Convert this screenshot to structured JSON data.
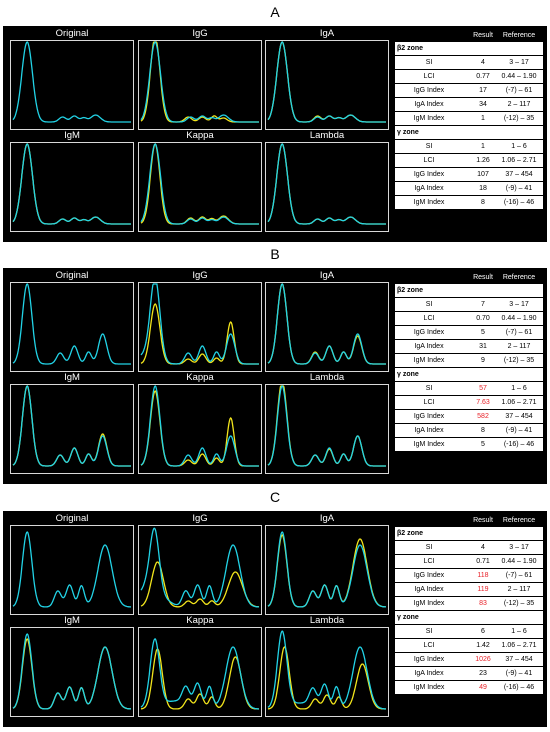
{
  "colors": {
    "original": "#22d3e6",
    "overlay": "#f2e51c",
    "flag": "#e8232a",
    "panel_bg": "#000000",
    "frame": "#d9d9d9"
  },
  "table_headers": {
    "result": "Result",
    "reference": "Reference"
  },
  "panels": [
    {
      "letter": "A",
      "profile": "A",
      "titles": [
        "Original",
        "IgG",
        "IgA",
        "IgM",
        "Kappa",
        "Lambda"
      ],
      "zones": [
        {
          "name": "β2 zone",
          "rows": [
            {
              "label": "SI",
              "result": "4",
              "reference": "3 – 17",
              "flag": false
            },
            {
              "label": "LCI",
              "result": "0.77",
              "reference": "0.44 – 1.90",
              "flag": false
            },
            {
              "label": "IgG Index",
              "result": "17",
              "reference": "(-7) – 61",
              "flag": false
            },
            {
              "label": "IgA Index",
              "result": "34",
              "reference": "2 – 117",
              "flag": false
            },
            {
              "label": "IgM Index",
              "result": "1",
              "reference": "(-12) – 35",
              "flag": false
            }
          ]
        },
        {
          "name": "γ zone",
          "rows": [
            {
              "label": "SI",
              "result": "1",
              "reference": "1 – 6",
              "flag": false
            },
            {
              "label": "LCI",
              "result": "1.26",
              "reference": "1.06 – 2.71",
              "flag": false
            },
            {
              "label": "IgG Index",
              "result": "107",
              "reference": "37 – 454",
              "flag": false
            },
            {
              "label": "IgA Index",
              "result": "18",
              "reference": "(-9) – 41",
              "flag": false
            },
            {
              "label": "IgM Index",
              "result": "8",
              "reference": "(-16) – 46",
              "flag": false
            }
          ]
        }
      ]
    },
    {
      "letter": "B",
      "profile": "B",
      "titles": [
        "Original",
        "IgG",
        "IgA",
        "IgM",
        "Kappa",
        "Lambda"
      ],
      "zones": [
        {
          "name": "β2 zone",
          "rows": [
            {
              "label": "SI",
              "result": "7",
              "reference": "3 – 17",
              "flag": false
            },
            {
              "label": "LCI",
              "result": "0.70",
              "reference": "0.44 – 1.90",
              "flag": false
            },
            {
              "label": "IgG Index",
              "result": "5",
              "reference": "(-7) – 61",
              "flag": false
            },
            {
              "label": "IgA Index",
              "result": "31",
              "reference": "2 – 117",
              "flag": false
            },
            {
              "label": "IgM Index",
              "result": "9",
              "reference": "(-12) – 35",
              "flag": false
            }
          ]
        },
        {
          "name": "γ zone",
          "rows": [
            {
              "label": "SI",
              "result": "57",
              "reference": "1 – 6",
              "flag": true
            },
            {
              "label": "LCI",
              "result": "7.63",
              "reference": "1.06 – 2.71",
              "flag": true
            },
            {
              "label": "IgG Index",
              "result": "582",
              "reference": "37 – 454",
              "flag": true
            },
            {
              "label": "IgA Index",
              "result": "8",
              "reference": "(-9) – 41",
              "flag": false
            },
            {
              "label": "IgM Index",
              "result": "5",
              "reference": "(-16) – 46",
              "flag": false
            }
          ]
        }
      ]
    },
    {
      "letter": "C",
      "profile": "C",
      "titles": [
        "Original",
        "IgG",
        "IgA",
        "IgM",
        "Kappa",
        "Lambda"
      ],
      "zones": [
        {
          "name": "β2 zone",
          "rows": [
            {
              "label": "SI",
              "result": "4",
              "reference": "3 – 17",
              "flag": false
            },
            {
              "label": "LCI",
              "result": "0.71",
              "reference": "0.44 – 1.90",
              "flag": false
            },
            {
              "label": "IgG Index",
              "result": "118",
              "reference": "(-7) – 61",
              "flag": true
            },
            {
              "label": "IgA Index",
              "result": "119",
              "reference": "2 – 117",
              "flag": true
            },
            {
              "label": "IgM Index",
              "result": "83",
              "reference": "(-12) – 35",
              "flag": true
            }
          ]
        },
        {
          "name": "γ zone",
          "rows": [
            {
              "label": "SI",
              "result": "6",
              "reference": "1 – 6",
              "flag": false
            },
            {
              "label": "LCI",
              "result": "1.42",
              "reference": "1.06 – 2.71",
              "flag": false
            },
            {
              "label": "IgG Index",
              "result": "1026",
              "reference": "37 – 454",
              "flag": true
            },
            {
              "label": "IgA Index",
              "result": "23",
              "reference": "(-9) – 41",
              "flag": false
            },
            {
              "label": "IgM Index",
              "result": "49",
              "reference": "(-16) – 46",
              "flag": true
            }
          ]
        }
      ]
    }
  ]
}
